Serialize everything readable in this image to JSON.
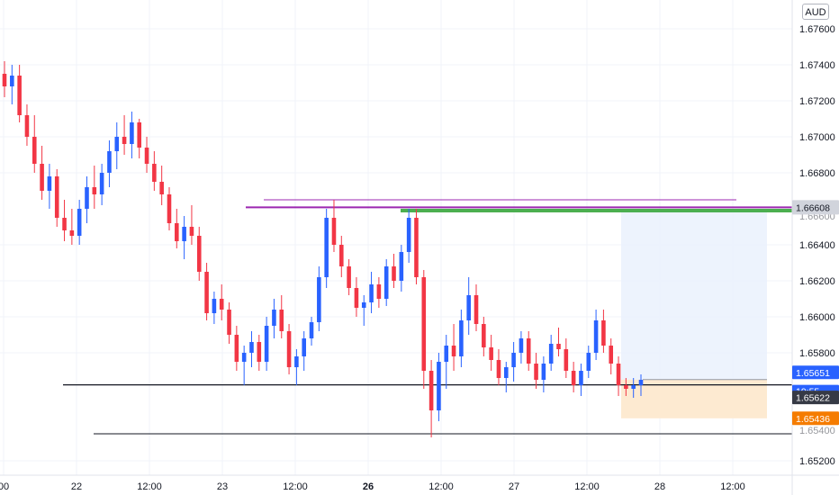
{
  "currency_button": {
    "label": "AUD"
  },
  "colors": {
    "up": "#2962ff",
    "down": "#f23645",
    "grid": "#f0f3fa",
    "purple": "#9c27b0",
    "green": "#4caf50",
    "black": "#131722",
    "range_fill": "#eaf1fd",
    "loss_fill": "#fde9cf",
    "orange_tag": "#f57c00",
    "blue_tag": "#2962ff",
    "dark_tag": "#363a45"
  },
  "chart_data": {
    "type": "candlestick",
    "y_axis": {
      "ticks": [
        "1.67600",
        "1.67400",
        "1.67200",
        "1.67000",
        "1.66800",
        "1.66400",
        "1.66200",
        "1.66000",
        "1.65800",
        "1.65200"
      ],
      "ylim": [
        1.6512,
        1.6776
      ]
    },
    "x_axis": {
      "ticks": [
        {
          "label": "00",
          "bold": false
        },
        {
          "label": "22",
          "bold": false
        },
        {
          "label": "12:00",
          "bold": false
        },
        {
          "label": "23",
          "bold": false
        },
        {
          "label": "12:00",
          "bold": false
        },
        {
          "label": "26",
          "bold": true
        },
        {
          "label": "12:00",
          "bold": false
        },
        {
          "label": "27",
          "bold": false
        },
        {
          "label": "12:00",
          "bold": false
        },
        {
          "label": "28",
          "bold": false
        },
        {
          "label": "12:00",
          "bold": false
        }
      ]
    },
    "price_tags": [
      {
        "label": "1.66608",
        "value": 1.66608,
        "style": "highlight"
      },
      {
        "label": "1.65651",
        "value": 1.65651,
        "style": "blue"
      },
      {
        "label": "19:55",
        "value": 1.65622,
        "style": "blue_small"
      },
      {
        "label": "1.65622",
        "value": 1.65622,
        "style": "dark"
      },
      {
        "label": "1.65436",
        "value": 1.65436,
        "style": "orange"
      }
    ],
    "axis_partial_labels": [
      "1.66600",
      "1.65400"
    ],
    "horizontal_lines": [
      {
        "value": 1.6665,
        "color": "purple"
      },
      {
        "value": 1.66608,
        "color": "purple"
      },
      {
        "value": 1.6659,
        "color": "green"
      },
      {
        "value": 1.65622,
        "color": "black"
      },
      {
        "value": 1.6535,
        "color": "black"
      }
    ],
    "position": {
      "entry": 1.65651,
      "target": 1.6659,
      "stop": 1.65436
    },
    "candles": [
      [
        1.6735,
        1.6742,
        1.6722,
        1.6728
      ],
      [
        1.6728,
        1.674,
        1.6718,
        1.6734
      ],
      [
        1.6734,
        1.674,
        1.6708,
        1.6712
      ],
      [
        1.6712,
        1.6718,
        1.6695,
        1.67
      ],
      [
        1.67,
        1.6712,
        1.668,
        1.6685
      ],
      [
        1.6685,
        1.6695,
        1.6665,
        1.667
      ],
      [
        1.667,
        1.6685,
        1.666,
        1.6678
      ],
      [
        1.6678,
        1.6682,
        1.665,
        1.6655
      ],
      [
        1.6655,
        1.6665,
        1.6642,
        1.6648
      ],
      [
        1.6648,
        1.666,
        1.664,
        1.6645
      ],
      [
        1.6645,
        1.6665,
        1.664,
        1.666
      ],
      [
        1.666,
        1.6678,
        1.6652,
        1.6672
      ],
      [
        1.6672,
        1.6684,
        1.666,
        1.6668
      ],
      [
        1.6668,
        1.6685,
        1.6662,
        1.668
      ],
      [
        1.668,
        1.6698,
        1.6672,
        1.6692
      ],
      [
        1.6692,
        1.6708,
        1.6682,
        1.67
      ],
      [
        1.67,
        1.6712,
        1.669,
        1.6696
      ],
      [
        1.6696,
        1.6714,
        1.6688,
        1.6708
      ],
      [
        1.6708,
        1.671,
        1.6688,
        1.6694
      ],
      [
        1.6694,
        1.67,
        1.668,
        1.6685
      ],
      [
        1.6685,
        1.6692,
        1.667,
        1.6675
      ],
      [
        1.6675,
        1.6684,
        1.6662,
        1.6668
      ],
      [
        1.6668,
        1.6672,
        1.6648,
        1.6652
      ],
      [
        1.6652,
        1.666,
        1.6638,
        1.6642
      ],
      [
        1.6642,
        1.6656,
        1.6632,
        1.665
      ],
      [
        1.665,
        1.6662,
        1.664,
        1.6645
      ],
      [
        1.6645,
        1.665,
        1.662,
        1.6625
      ],
      [
        1.6625,
        1.663,
        1.6598,
        1.6602
      ],
      [
        1.6602,
        1.6614,
        1.6596,
        1.661
      ],
      [
        1.661,
        1.6618,
        1.6598,
        1.6604
      ],
      [
        1.6604,
        1.6608,
        1.6585,
        1.659
      ],
      [
        1.659,
        1.6595,
        1.657,
        1.6575
      ],
      [
        1.6575,
        1.6584,
        1.6562,
        1.658
      ],
      [
        1.658,
        1.6592,
        1.6572,
        1.6586
      ],
      [
        1.6586,
        1.659,
        1.657,
        1.6575
      ],
      [
        1.6575,
        1.66,
        1.657,
        1.6595
      ],
      [
        1.6595,
        1.661,
        1.6588,
        1.6604
      ],
      [
        1.6604,
        1.6612,
        1.6588,
        1.6592
      ],
      [
        1.6592,
        1.6596,
        1.6568,
        1.6572
      ],
      [
        1.6572,
        1.6582,
        1.6562,
        1.6578
      ],
      [
        1.6578,
        1.6592,
        1.657,
        1.6588
      ],
      [
        1.6588,
        1.66,
        1.6584,
        1.6597
      ],
      [
        1.6597,
        1.6628,
        1.6592,
        1.6622
      ],
      [
        1.6622,
        1.666,
        1.6616,
        1.6655
      ],
      [
        1.6655,
        1.6665,
        1.6636,
        1.664
      ],
      [
        1.664,
        1.6645,
        1.6622,
        1.6628
      ],
      [
        1.6628,
        1.6632,
        1.6612,
        1.6616
      ],
      [
        1.6616,
        1.6622,
        1.66,
        1.6605
      ],
      [
        1.6605,
        1.6612,
        1.6595,
        1.6608
      ],
      [
        1.6608,
        1.6625,
        1.6602,
        1.6618
      ],
      [
        1.6618,
        1.6622,
        1.6605,
        1.661
      ],
      [
        1.661,
        1.6632,
        1.6606,
        1.6628
      ],
      [
        1.6628,
        1.6635,
        1.6616,
        1.662
      ],
      [
        1.662,
        1.664,
        1.6614,
        1.6636
      ],
      [
        1.6636,
        1.666,
        1.663,
        1.6655
      ],
      [
        1.6655,
        1.666,
        1.6618,
        1.6622
      ],
      [
        1.6622,
        1.6626,
        1.656,
        1.657
      ],
      [
        1.657,
        1.6576,
        1.6533,
        1.6548
      ],
      [
        1.6548,
        1.658,
        1.6542,
        1.6575
      ],
      [
        1.6575,
        1.659,
        1.656,
        1.6584
      ],
      [
        1.6584,
        1.6596,
        1.657,
        1.6578
      ],
      [
        1.6578,
        1.6604,
        1.6572,
        1.6598
      ],
      [
        1.6598,
        1.6622,
        1.659,
        1.6612
      ],
      [
        1.6612,
        1.6618,
        1.6592,
        1.6596
      ],
      [
        1.6596,
        1.66,
        1.6578,
        1.6583
      ],
      [
        1.6583,
        1.659,
        1.657,
        1.6576
      ],
      [
        1.6576,
        1.6582,
        1.6562,
        1.6566
      ],
      [
        1.6566,
        1.6575,
        1.6558,
        1.6572
      ],
      [
        1.6572,
        1.6586,
        1.6564,
        1.658
      ],
      [
        1.658,
        1.6592,
        1.6574,
        1.6588
      ],
      [
        1.6588,
        1.6592,
        1.657,
        1.6574
      ],
      [
        1.6574,
        1.658,
        1.656,
        1.6565
      ],
      [
        1.6565,
        1.6578,
        1.6558,
        1.6574
      ],
      [
        1.6574,
        1.659,
        1.657,
        1.6585
      ],
      [
        1.6585,
        1.6594,
        1.6578,
        1.6582
      ],
      [
        1.6582,
        1.6588,
        1.6566,
        1.657
      ],
      [
        1.657,
        1.6575,
        1.6558,
        1.6562
      ],
      [
        1.6562,
        1.6574,
        1.6556,
        1.657
      ],
      [
        1.657,
        1.6584,
        1.6566,
        1.658
      ],
      [
        1.658,
        1.6604,
        1.6576,
        1.6598
      ],
      [
        1.6598,
        1.6604,
        1.658,
        1.6584
      ],
      [
        1.6584,
        1.6588,
        1.6568,
        1.6574
      ],
      [
        1.6574,
        1.6578,
        1.6556,
        1.6562
      ],
      [
        1.6562,
        1.6566,
        1.6556,
        1.656
      ],
      [
        1.656,
        1.6566,
        1.6555,
        1.6562
      ],
      [
        1.6562,
        1.6568,
        1.6556,
        1.6565
      ]
    ]
  }
}
